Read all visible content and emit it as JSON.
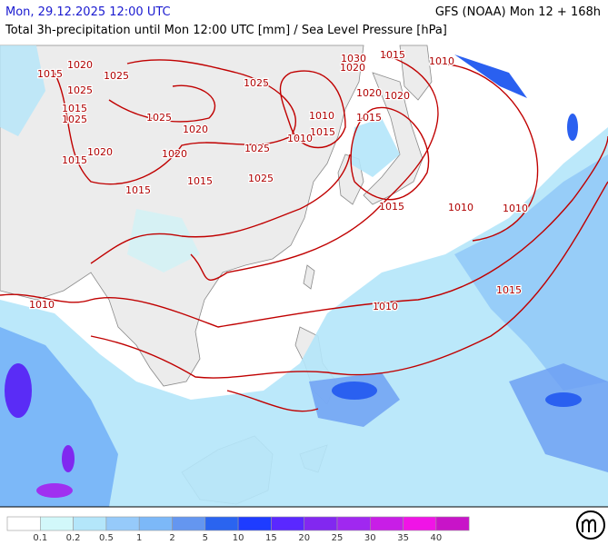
{
  "header": {
    "valid_time": "Mon, 29.12.2025 12:00 UTC",
    "model_run": "GFS (NOAA) Mon 12 + 168h",
    "subtitle": "Total 3h-precipitation until Mon 12:00 UTC [mm] / Sea Level Pressure [hPa]"
  },
  "isobar_labels": [
    "1015",
    "1020",
    "1025",
    "1025",
    "1015",
    "1025",
    "1020",
    "1015",
    "1025",
    "1020",
    "1015",
    "1025",
    "1025",
    "1025",
    "1015",
    "1030",
    "1020",
    "1015",
    "1010",
    "1015",
    "1010",
    "1020",
    "1020",
    "1015",
    "1010",
    "1020",
    "1015",
    "1010",
    "1010",
    "1015",
    "1010",
    "1010"
  ],
  "legend": [
    {
      "color": "#ffffff",
      "label": "0.1"
    },
    {
      "color": "#d2f8fa",
      "label": "0.2"
    },
    {
      "color": "#b4e6fa",
      "label": "0.5"
    },
    {
      "color": "#96cafa",
      "label": "1"
    },
    {
      "color": "#7cb8f8",
      "label": "2"
    },
    {
      "color": "#6496f0",
      "label": "5"
    },
    {
      "color": "#2a64f0",
      "label": "10"
    },
    {
      "color": "#1e3cff",
      "label": "15"
    },
    {
      "color": "#5a28ff",
      "label": "20"
    },
    {
      "color": "#8228f0",
      "label": "25"
    },
    {
      "color": "#a028f0",
      "label": "30"
    },
    {
      "color": "#c81ee6",
      "label": "35"
    },
    {
      "color": "#f014e6",
      "label": "40"
    },
    {
      "color": "#c814c8",
      "label": null
    }
  ]
}
